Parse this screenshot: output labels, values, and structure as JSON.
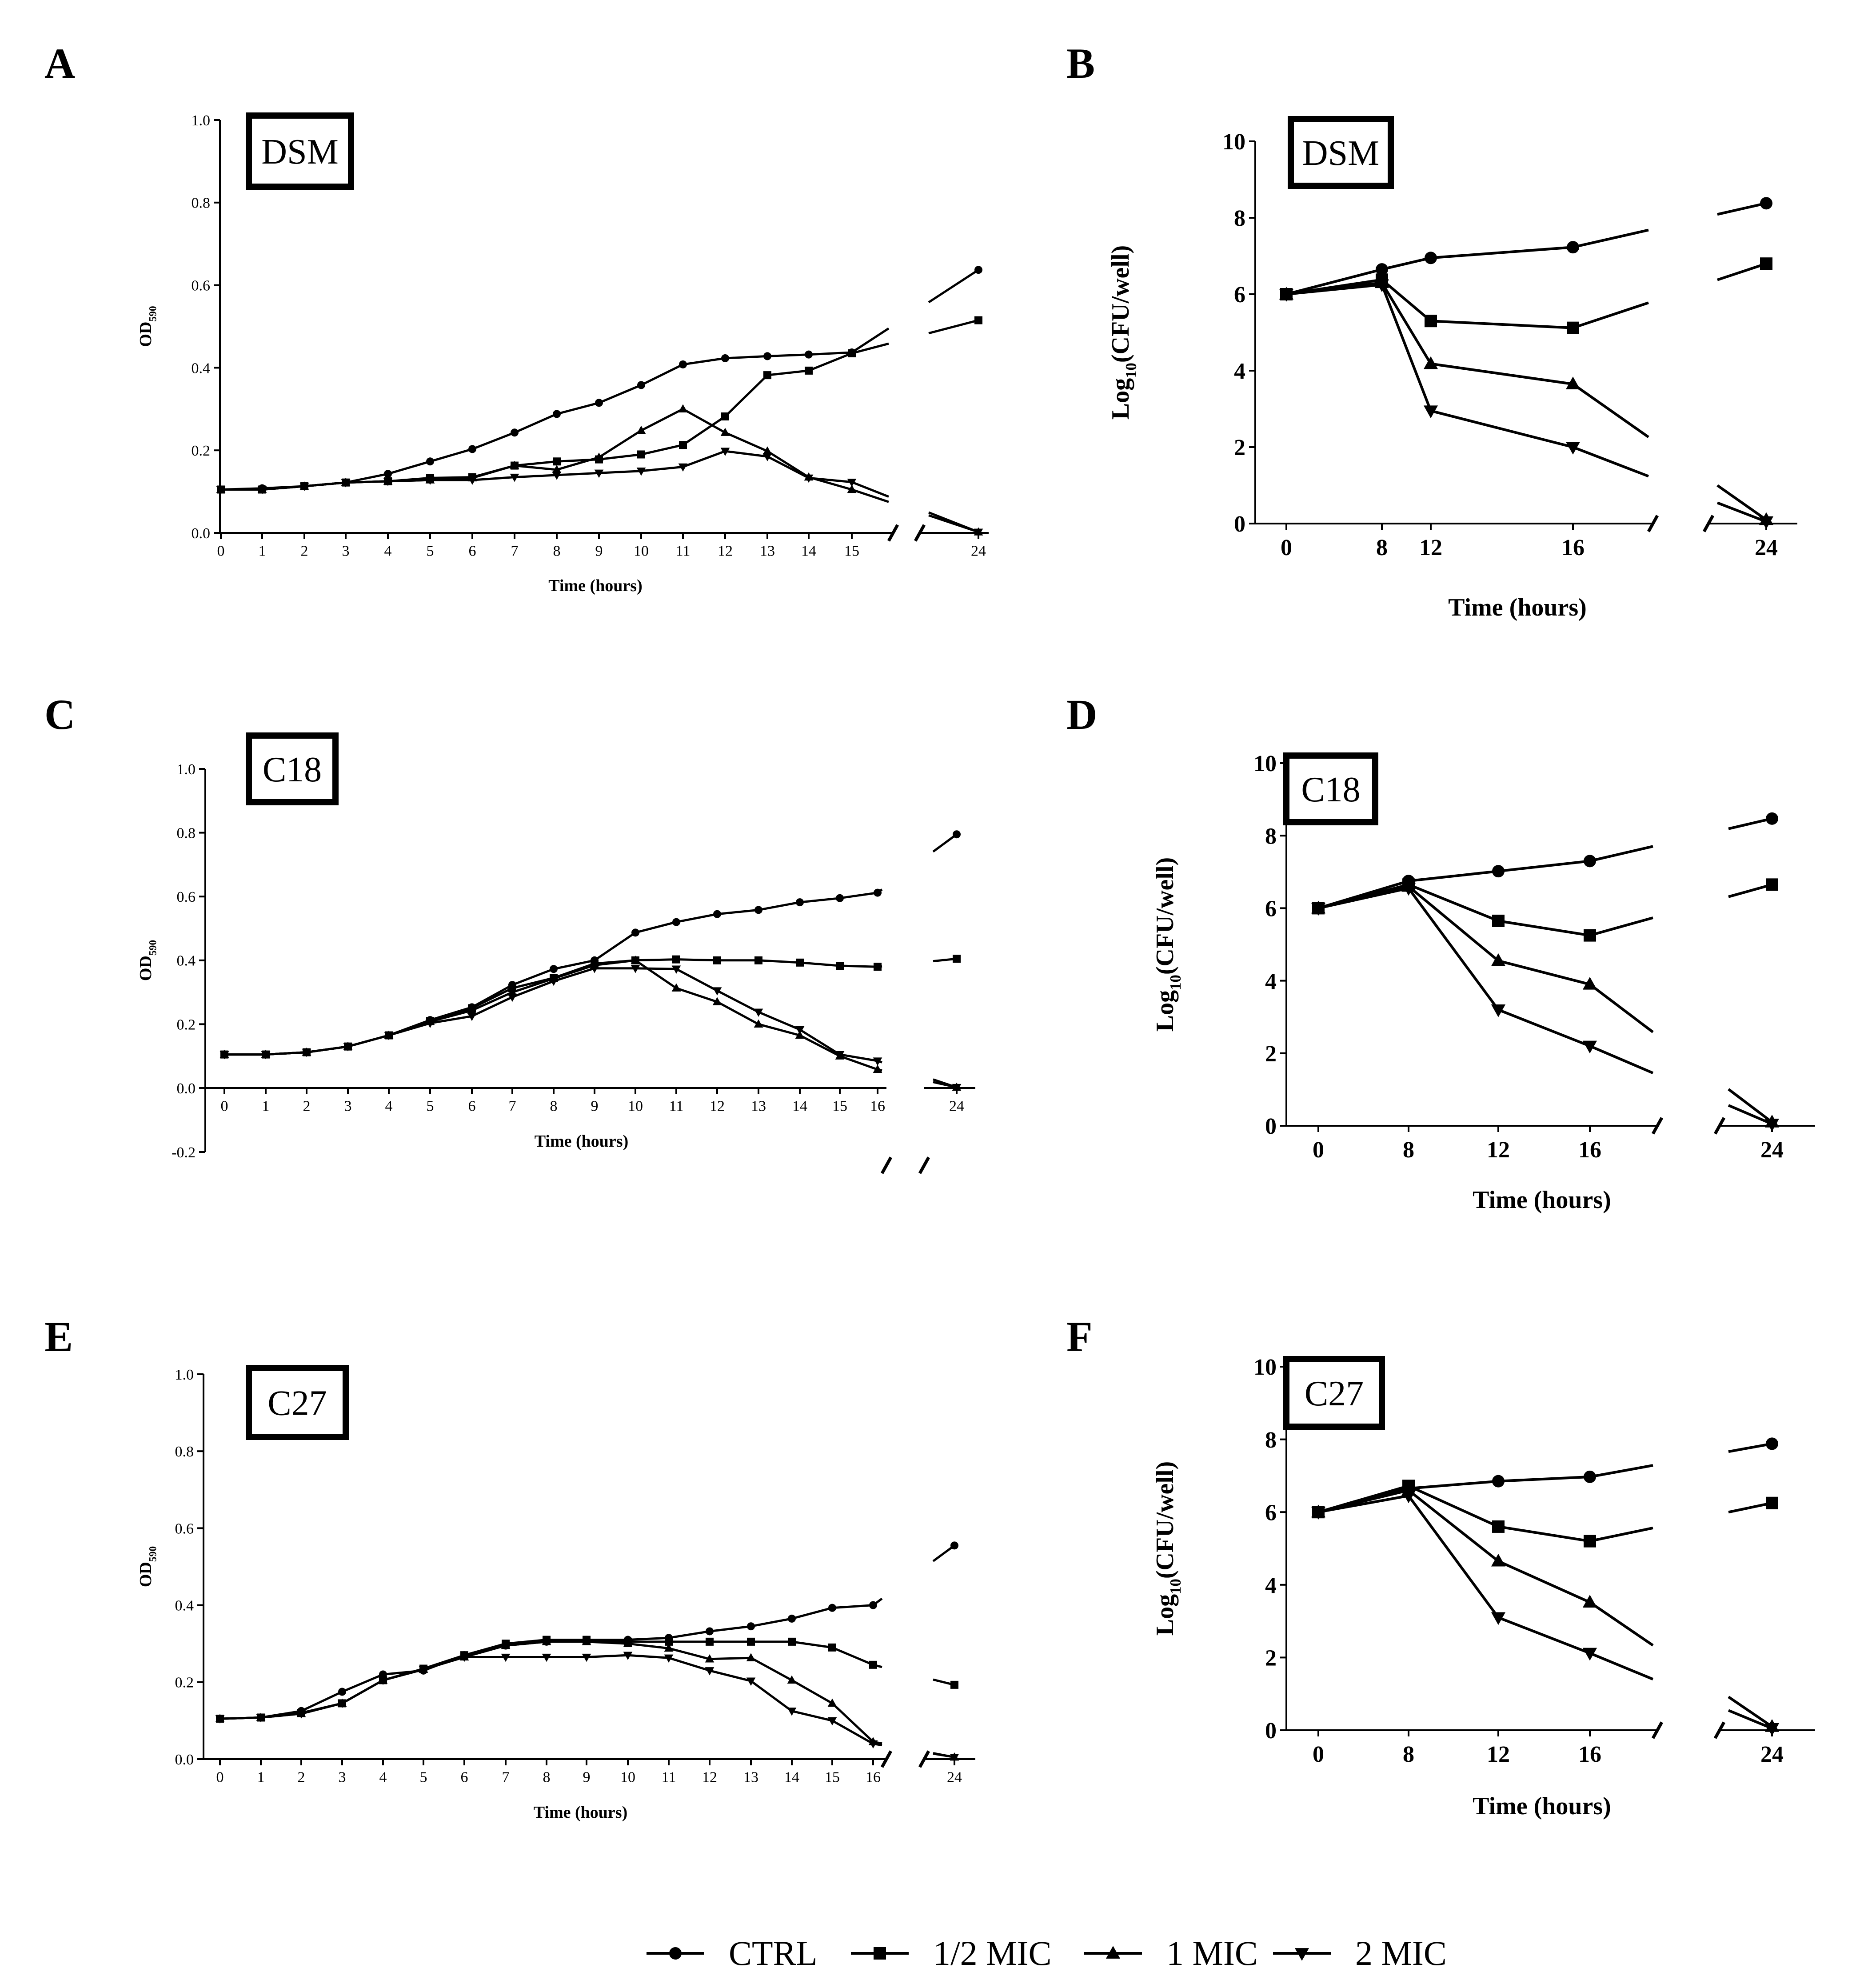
{
  "figure": {
    "panels": [
      {
        "letter": "A",
        "strain": "DSM",
        "kind": "od"
      },
      {
        "letter": "B",
        "strain": "DSM",
        "kind": "cfu"
      },
      {
        "letter": "C",
        "strain": "C18",
        "kind": "od"
      },
      {
        "letter": "D",
        "strain": "C18",
        "kind": "cfu"
      },
      {
        "letter": "E",
        "strain": "C27",
        "kind": "od"
      },
      {
        "letter": "F",
        "strain": "C27",
        "kind": "cfu"
      }
    ],
    "legend": [
      "CTRL",
      "1/2 MIC",
      "1 MIC",
      "2 MIC"
    ],
    "colors": {
      "line": "#000000",
      "background": "#ffffff"
    }
  },
  "chart_data": [
    {
      "type": "line",
      "panel": "A",
      "badge": "DSM",
      "xlabel": "Time (hours)",
      "ylabel": "OD590",
      "ylabel_main": "OD",
      "ylabel_sub": "590",
      "xticks": [
        "0",
        "1",
        "2",
        "3",
        "4",
        "5",
        "6",
        "7",
        "8",
        "9",
        "10",
        "11",
        "12",
        "13",
        "14",
        "15",
        "24"
      ],
      "yticks": [
        "0.0",
        "0.2",
        "0.4",
        "0.6",
        "0.8",
        "1.0"
      ],
      "ylim": [
        0,
        1.0
      ],
      "x": [
        0,
        1,
        2,
        3,
        4,
        5,
        6,
        7,
        8,
        9,
        10,
        11,
        12,
        13,
        14,
        15,
        24
      ],
      "series": [
        {
          "name": "CTRL",
          "values": [
            0.105,
            0.108,
            0.113,
            0.122,
            0.143,
            0.173,
            0.203,
            0.243,
            0.288,
            0.315,
            0.358,
            0.408,
            0.423,
            0.428,
            0.432,
            0.437,
            0.637
          ]
        },
        {
          "name": "1/2 MIC",
          "values": [
            0.105,
            0.105,
            0.113,
            0.122,
            0.125,
            0.133,
            0.135,
            0.163,
            0.173,
            0.178,
            0.19,
            0.213,
            0.282,
            0.382,
            0.393,
            0.435,
            0.515
          ]
        },
        {
          "name": "1 MIC",
          "values": [
            0.105,
            0.105,
            0.113,
            0.122,
            0.125,
            0.128,
            0.133,
            0.163,
            0.153,
            0.183,
            0.248,
            0.3,
            0.243,
            0.198,
            0.135,
            0.105,
            0.002
          ]
        },
        {
          "name": "2 MIC",
          "values": [
            0.105,
            0.105,
            0.113,
            0.122,
            0.125,
            0.128,
            0.128,
            0.135,
            0.14,
            0.145,
            0.15,
            0.16,
            0.198,
            0.185,
            0.133,
            0.123,
            0.002
          ]
        }
      ]
    },
    {
      "type": "line",
      "panel": "B",
      "badge": "DSM",
      "xlabel": "Time (hours)",
      "ylabel": "Log10(CFU/well)",
      "ylabel_main": "Log",
      "ylabel_sub": "10",
      "ylabel_tail": "(CFU/well)",
      "xticks": [
        "0",
        "8",
        "12",
        "16",
        "24"
      ],
      "yticks": [
        "0",
        "2",
        "4",
        "6",
        "8",
        "10"
      ],
      "ylim": [
        0,
        10
      ],
      "x": [
        0,
        8,
        12,
        16,
        24
      ],
      "series": [
        {
          "name": "CTRL",
          "values": [
            6.0,
            6.65,
            6.95,
            7.23,
            8.38
          ]
        },
        {
          "name": "1/2 MIC",
          "values": [
            6.0,
            6.38,
            5.3,
            5.12,
            6.8
          ]
        },
        {
          "name": "1 MIC",
          "values": [
            6.0,
            6.3,
            4.18,
            3.65,
            0.1
          ]
        },
        {
          "name": "2 MIC",
          "values": [
            6.0,
            6.25,
            2.95,
            2.0,
            0.05
          ]
        }
      ]
    },
    {
      "type": "line",
      "panel": "C",
      "badge": "C18",
      "xlabel": "Time (hours)",
      "ylabel": "OD590",
      "ylabel_main": "OD",
      "ylabel_sub": "590",
      "xticks": [
        "0",
        "1",
        "2",
        "3",
        "4",
        "5",
        "6",
        "7",
        "8",
        "9",
        "10",
        "11",
        "12",
        "13",
        "14",
        "15",
        "16",
        "24"
      ],
      "yticks": [
        "-0.2",
        "0.0",
        "0.2",
        "0.4",
        "0.6",
        "0.8",
        "1.0"
      ],
      "ylim": [
        -0.2,
        1.0
      ],
      "x": [
        0,
        1,
        2,
        3,
        4,
        5,
        6,
        7,
        8,
        9,
        10,
        11,
        12,
        13,
        14,
        15,
        16,
        24
      ],
      "series": [
        {
          "name": "CTRL",
          "values": [
            0.105,
            0.105,
            0.112,
            0.13,
            0.165,
            0.213,
            0.253,
            0.323,
            0.373,
            0.4,
            0.487,
            0.52,
            0.545,
            0.558,
            0.582,
            0.595,
            0.612,
            0.795
          ]
        },
        {
          "name": "1/2 MIC",
          "values": [
            0.105,
            0.105,
            0.112,
            0.13,
            0.165,
            0.21,
            0.25,
            0.313,
            0.345,
            0.39,
            0.4,
            0.403,
            0.4,
            0.4,
            0.393,
            0.383,
            0.38,
            0.405
          ]
        },
        {
          "name": "1 MIC",
          "values": [
            0.105,
            0.105,
            0.112,
            0.13,
            0.165,
            0.208,
            0.243,
            0.3,
            0.343,
            0.385,
            0.4,
            0.313,
            0.27,
            0.2,
            0.165,
            0.1,
            0.058,
            0.002
          ]
        },
        {
          "name": "2 MIC",
          "values": [
            0.105,
            0.105,
            0.112,
            0.13,
            0.165,
            0.203,
            0.225,
            0.285,
            0.335,
            0.375,
            0.375,
            0.373,
            0.305,
            0.238,
            0.183,
            0.105,
            0.085,
            0.002
          ]
        }
      ]
    },
    {
      "type": "line",
      "panel": "D",
      "badge": "C18",
      "xlabel": "Time (hours)",
      "ylabel": "Log10(CFU/well)",
      "ylabel_main": "Log",
      "ylabel_sub": "10",
      "ylabel_tail": "(CFU/well)",
      "xticks": [
        "0",
        "8",
        "12",
        "16",
        "24"
      ],
      "yticks": [
        "0",
        "2",
        "4",
        "6",
        "8",
        "10"
      ],
      "ylim": [
        0,
        10
      ],
      "x": [
        0,
        8,
        12,
        16,
        24
      ],
      "series": [
        {
          "name": "CTRL",
          "values": [
            6.0,
            6.75,
            7.02,
            7.3,
            8.47
          ]
        },
        {
          "name": "1/2 MIC",
          "values": [
            6.0,
            6.65,
            5.65,
            5.25,
            6.65
          ]
        },
        {
          "name": "1 MIC",
          "values": [
            6.0,
            6.6,
            4.55,
            3.9,
            0.1
          ]
        },
        {
          "name": "2 MIC",
          "values": [
            6.0,
            6.55,
            3.2,
            2.2,
            0.05
          ]
        }
      ]
    },
    {
      "type": "line",
      "panel": "E",
      "badge": "C27",
      "xlabel": "Time (hours)",
      "ylabel": "OD590",
      "ylabel_main": "OD",
      "ylabel_sub": "590",
      "xticks": [
        "0",
        "1",
        "2",
        "3",
        "4",
        "5",
        "6",
        "7",
        "8",
        "9",
        "10",
        "11",
        "12",
        "13",
        "14",
        "15",
        "16",
        "24"
      ],
      "yticks": [
        "0.0",
        "0.2",
        "0.4",
        "0.6",
        "0.8",
        "1.0"
      ],
      "ylim": [
        0,
        1.0
      ],
      "x": [
        0,
        1,
        2,
        3,
        4,
        5,
        6,
        7,
        8,
        9,
        10,
        11,
        12,
        13,
        14,
        15,
        16,
        24
      ],
      "series": [
        {
          "name": "CTRL",
          "values": [
            0.105,
            0.108,
            0.125,
            0.175,
            0.22,
            0.23,
            0.27,
            0.295,
            0.305,
            0.31,
            0.31,
            0.315,
            0.332,
            0.345,
            0.365,
            0.393,
            0.4,
            0.555
          ]
        },
        {
          "name": "1/2 MIC",
          "values": [
            0.105,
            0.108,
            0.12,
            0.145,
            0.205,
            0.235,
            0.27,
            0.3,
            0.31,
            0.31,
            0.305,
            0.305,
            0.305,
            0.305,
            0.305,
            0.29,
            0.245,
            0.193
          ]
        },
        {
          "name": "1 MIC",
          "values": [
            0.105,
            0.108,
            0.118,
            0.145,
            0.205,
            0.233,
            0.265,
            0.295,
            0.305,
            0.305,
            0.3,
            0.288,
            0.26,
            0.263,
            0.205,
            0.145,
            0.045,
            0.005
          ]
        },
        {
          "name": "2 MIC",
          "values": [
            0.105,
            0.108,
            0.118,
            0.145,
            0.205,
            0.233,
            0.265,
            0.265,
            0.265,
            0.265,
            0.27,
            0.263,
            0.23,
            0.203,
            0.125,
            0.1,
            0.04,
            0.005
          ]
        }
      ]
    },
    {
      "type": "line",
      "panel": "F",
      "badge": "C27",
      "xlabel": "Time (hours)",
      "ylabel": "Log10(CFU/well)",
      "ylabel_main": "Log",
      "ylabel_sub": "10",
      "ylabel_tail": "(CFU/well)",
      "xticks": [
        "0",
        "8",
        "12",
        "16",
        "24"
      ],
      "yticks": [
        "0",
        "2",
        "4",
        "6",
        "8",
        "10"
      ],
      "ylim": [
        0,
        10
      ],
      "x": [
        0,
        8,
        12,
        16,
        24
      ],
      "series": [
        {
          "name": "CTRL",
          "values": [
            6.0,
            6.65,
            6.85,
            6.97,
            7.88
          ]
        },
        {
          "name": "1/2 MIC",
          "values": [
            6.0,
            6.72,
            5.6,
            5.2,
            6.25
          ]
        },
        {
          "name": "1 MIC",
          "values": [
            6.0,
            6.6,
            4.65,
            3.52,
            0.1
          ]
        },
        {
          "name": "2 MIC",
          "values": [
            6.0,
            6.45,
            3.1,
            2.12,
            0.05
          ]
        }
      ]
    }
  ]
}
